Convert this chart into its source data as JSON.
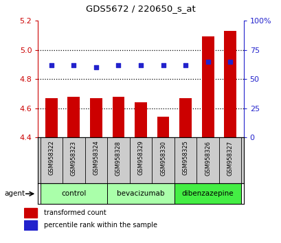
{
  "title": "GDS5672 / 220650_s_at",
  "samples": [
    "GSM958322",
    "GSM958323",
    "GSM958324",
    "GSM958328",
    "GSM958329",
    "GSM958330",
    "GSM958325",
    "GSM958326",
    "GSM958327"
  ],
  "bar_values": [
    4.67,
    4.68,
    4.67,
    4.68,
    4.64,
    4.54,
    4.67,
    5.09,
    5.13
  ],
  "percentile_values": [
    62,
    62,
    60,
    62,
    62,
    62,
    62,
    65,
    65
  ],
  "bar_bottom": 4.4,
  "ylim_left": [
    4.4,
    5.2
  ],
  "ylim_right": [
    0,
    100
  ],
  "yticks_left": [
    4.4,
    4.6,
    4.8,
    5.0,
    5.2
  ],
  "yticks_right": [
    0,
    25,
    50,
    75,
    100
  ],
  "ytick_labels_right": [
    "0",
    "25",
    "50",
    "75",
    "100%"
  ],
  "group_spans": [
    {
      "start": 0,
      "end": 2,
      "label": "control",
      "color": "#aaffaa"
    },
    {
      "start": 3,
      "end": 5,
      "label": "bevacizumab",
      "color": "#aaffaa"
    },
    {
      "start": 6,
      "end": 8,
      "label": "dibenzazepine",
      "color": "#44ee44"
    }
  ],
  "bar_color": "#cc0000",
  "dot_color": "#2222cc",
  "grid_color": "#000000",
  "bg_color": "#ffffff",
  "plot_bg": "#ffffff",
  "left_tick_color": "#cc0000",
  "right_tick_color": "#2222cc",
  "legend_items": [
    {
      "label": "transformed count",
      "color": "#cc0000"
    },
    {
      "label": "percentile rank within the sample",
      "color": "#2222cc"
    }
  ],
  "label_bg": "#cccccc"
}
